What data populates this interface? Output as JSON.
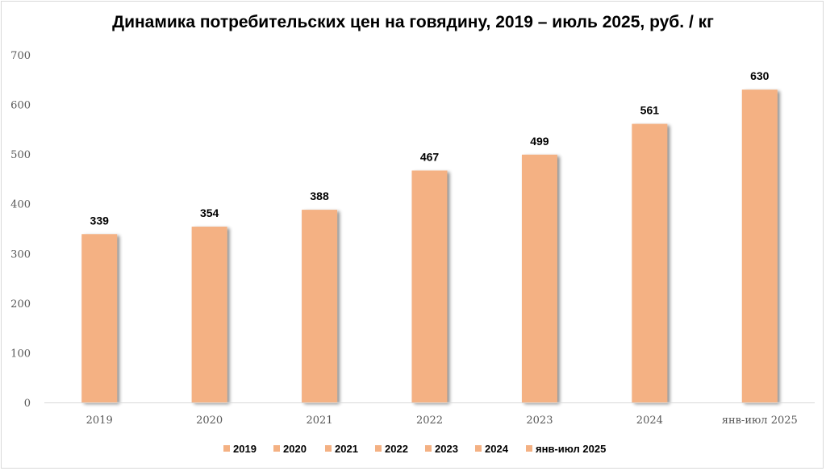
{
  "chart_data": {
    "type": "bar",
    "title": "Динамика потребительских цен на говядину, 2019 – июль 2025, руб. / кг",
    "categories": [
      "2019",
      "2020",
      "2021",
      "2022",
      "2023",
      "2024",
      "янв-июл 2025"
    ],
    "values": [
      339,
      354,
      388,
      467,
      499,
      561,
      630
    ],
    "ylim": [
      0,
      700
    ],
    "yticks": [
      0,
      100,
      200,
      300,
      400,
      500,
      600,
      700
    ],
    "grid": false,
    "legend_position": "bottom",
    "legend": [
      "2019",
      "2020",
      "2021",
      "2022",
      "2023",
      "2024",
      "янв-июл 2025"
    ],
    "data_labels": true
  },
  "colors": {
    "bar": "#f4b183",
    "shadow": "#bfbfbf",
    "axis": "#d9d9d9"
  }
}
